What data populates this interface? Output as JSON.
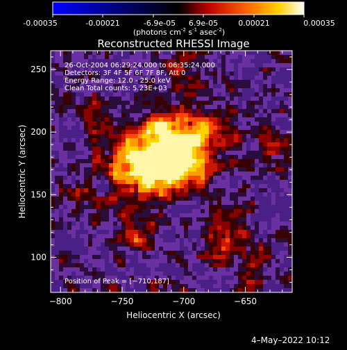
{
  "colorbar": {
    "ticks": [
      "-0.00035",
      "-0.00021",
      "-6.9e-05",
      "6.9e-05",
      "0.00021",
      "0.00035"
    ],
    "units_main": "(photons cm",
    "units_sup1": "-2",
    "units_mid1": " s",
    "units_sup2": "-1",
    "units_mid2": " asec",
    "units_sup3": "-2",
    "units_end": ")",
    "gradient": [
      "#0000ff",
      "#000000",
      "#ff0000",
      "#ffaa00",
      "#ffff00",
      "#ffffff"
    ]
  },
  "plot": {
    "title": "Reconstructed RHESSI Image",
    "xlabel": "Heliocentric X (arcsec)",
    "ylabel": "Heliocentric Y (arcsec)",
    "x_range": [
      -808,
      -612
    ],
    "y_range": [
      72,
      265
    ],
    "x_ticks": [
      {
        "value": -800,
        "label": "−800"
      },
      {
        "value": -750,
        "label": "−750"
      },
      {
        "value": -700,
        "label": "−700"
      },
      {
        "value": -650,
        "label": "−650"
      }
    ],
    "y_ticks": [
      {
        "value": 100,
        "label": "100"
      },
      {
        "value": 150,
        "label": "150"
      },
      {
        "value": 200,
        "label": "200"
      },
      {
        "value": 250,
        "label": "250"
      }
    ],
    "info_lines": [
      "26-Oct-2004 06:29:24.000 to 06:35:24.000",
      "Detectors: 3F 4F 5F 6F 7F 8F, Att 0",
      "Energy Range: 12.0 - 25.0 keV",
      "Clean     Total counts: 5.23E+03"
    ],
    "peak_text": "Position of Peak = [−710,187]",
    "peak": [
      -710,
      187
    ]
  },
  "footer": {
    "date": "4–May–2022 10:12"
  }
}
